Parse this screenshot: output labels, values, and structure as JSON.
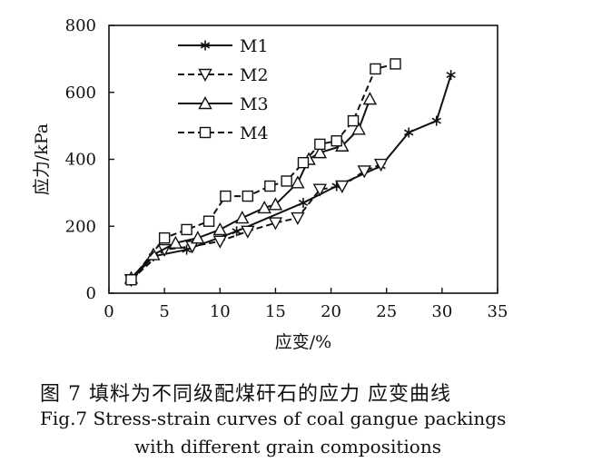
{
  "chart_data": {
    "type": "line",
    "xlabel": "应变/%",
    "ylabel": "应力/kPa",
    "xlim": [
      0,
      35
    ],
    "ylim": [
      0,
      800
    ],
    "xticks": [
      "0",
      "5",
      "10",
      "15",
      "20",
      "25",
      "30",
      "35"
    ],
    "yticks": [
      "0",
      "200",
      "400",
      "600",
      "800"
    ],
    "legend_position": "top-left",
    "grid": false,
    "series": [
      {
        "name": "M1",
        "marker": "asterisk",
        "dash": "solid",
        "x": [
          2.0,
          4.0,
          7.0,
          11.5,
          17.5,
          20.5,
          24.5,
          27.0,
          29.5,
          30.8
        ],
        "y": [
          40,
          110,
          130,
          185,
          270,
          320,
          380,
          480,
          515,
          652
        ]
      },
      {
        "name": "M2",
        "marker": "triangle-down",
        "dash": "dashed",
        "x": [
          2.0,
          5.0,
          7.5,
          10.0,
          12.5,
          15.0,
          17.0,
          19.0,
          21.0,
          23.0,
          24.5
        ],
        "y": [
          40,
          130,
          140,
          155,
          185,
          210,
          225,
          310,
          320,
          365,
          385
        ]
      },
      {
        "name": "M3",
        "marker": "triangle-up",
        "dash": "solid",
        "x": [
          2.0,
          4.0,
          6.0,
          8.0,
          10.0,
          12.0,
          14.0,
          15.0,
          17.0,
          18.0,
          19.0,
          21.0,
          22.5,
          23.5
        ],
        "y": [
          45,
          115,
          150,
          165,
          190,
          225,
          255,
          265,
          330,
          400,
          420,
          440,
          490,
          580
        ]
      },
      {
        "name": "M4",
        "marker": "square",
        "dash": "dashed",
        "x": [
          2.0,
          5.0,
          7.0,
          9.0,
          10.5,
          12.5,
          14.5,
          16.0,
          17.5,
          19.0,
          20.5,
          22.0,
          24.0,
          25.8
        ],
        "y": [
          40,
          165,
          190,
          215,
          290,
          290,
          320,
          335,
          390,
          445,
          455,
          515,
          670,
          685
        ]
      }
    ]
  },
  "caption": {
    "cn": "图 7   填料为不同级配煤矸石的应力 应变曲线",
    "en_line1": "Fig.7    Stress-strain curves of coal gangue packings",
    "en_line2": "with different grain compositions"
  }
}
